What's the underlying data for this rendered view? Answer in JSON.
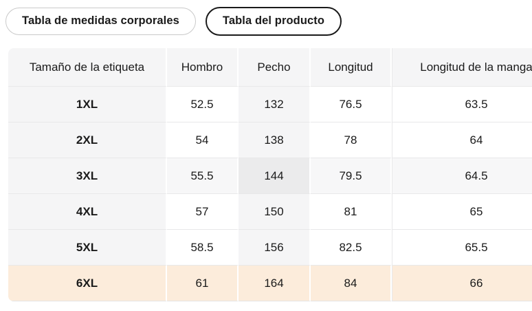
{
  "tabs": [
    {
      "label": "Tabla de medidas corporales",
      "selected": false
    },
    {
      "label": "Tabla del producto",
      "selected": true
    }
  ],
  "table": {
    "columns": [
      "Tamaño de la etiqueta",
      "Hombro",
      "Pecho",
      "Longitud",
      "Longitud de la manga"
    ],
    "rows": [
      {
        "label": "1XL",
        "values": [
          "52.5",
          "132",
          "76.5",
          "63.5"
        ]
      },
      {
        "label": "2XL",
        "values": [
          "54",
          "138",
          "78",
          "64"
        ]
      },
      {
        "label": "3XL",
        "values": [
          "55.5",
          "144",
          "79.5",
          "64.5"
        ]
      },
      {
        "label": "4XL",
        "values": [
          "57",
          "150",
          "81",
          "65"
        ]
      },
      {
        "label": "5XL",
        "values": [
          "58.5",
          "156",
          "82.5",
          "65.5"
        ]
      },
      {
        "label": "6XL",
        "values": [
          "61",
          "164",
          "84",
          "66"
        ]
      }
    ],
    "highlighted_column": "Pecho",
    "highlighted_row": "3XL",
    "highlighted_cell_value": "144",
    "selected_row": "6XL"
  },
  "colors": {
    "pill_inactive_border": "#c9c9c9",
    "pill_active_border": "#1a1a1a",
    "header_bg": "#f5f5f6",
    "col_highlight": "#f5f5f6",
    "row_highlight": "#f7f7f8",
    "cell_highlight": "#ebebec",
    "selected_row_bg": "#fcecdb",
    "grid_line": "#e8e8e9",
    "text": "#1a1a1a"
  }
}
